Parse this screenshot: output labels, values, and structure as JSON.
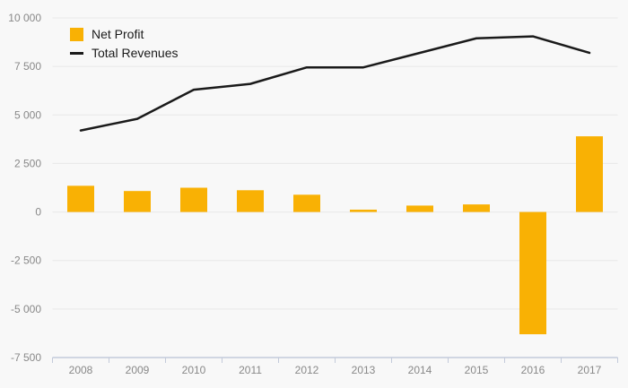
{
  "chart_data": {
    "type": "combo-bar-line",
    "title": "",
    "categories": [
      "2008",
      "2009",
      "2010",
      "2011",
      "2012",
      "2013",
      "2014",
      "2015",
      "2016",
      "2017"
    ],
    "series": [
      {
        "name": "Net Profit",
        "type": "bar",
        "color": "#F9B104",
        "values": [
          1350,
          1080,
          1250,
          1120,
          890,
          120,
          330,
          390,
          -6300,
          3900
        ]
      },
      {
        "name": "Total Revenues",
        "type": "line",
        "color": "#1A1A1A",
        "values": [
          4200,
          4800,
          6300,
          6600,
          7450,
          7450,
          8200,
          8950,
          9050,
          8200
        ]
      }
    ],
    "y_axis": {
      "min": -7500,
      "max": 10000,
      "step": 2500,
      "tick_values": [
        10000,
        7500,
        5000,
        2500,
        0,
        -2500,
        -5000,
        -7500
      ],
      "tick_labels": [
        "10 000",
        "7 500",
        "5 000",
        "2 500",
        "0",
        "-2 500",
        "-5 000",
        "-7 500"
      ]
    },
    "grid": true,
    "legend_position": "top-left"
  },
  "legend": {
    "items": [
      {
        "label": "Net Profit"
      },
      {
        "label": "Total Revenues"
      }
    ]
  },
  "colors": {
    "background": "#f8f8f8",
    "gridline": "#e8e8e8",
    "axis": "#c3cada",
    "tick_label": "#888888",
    "legend_text": "#1a1a1a"
  }
}
